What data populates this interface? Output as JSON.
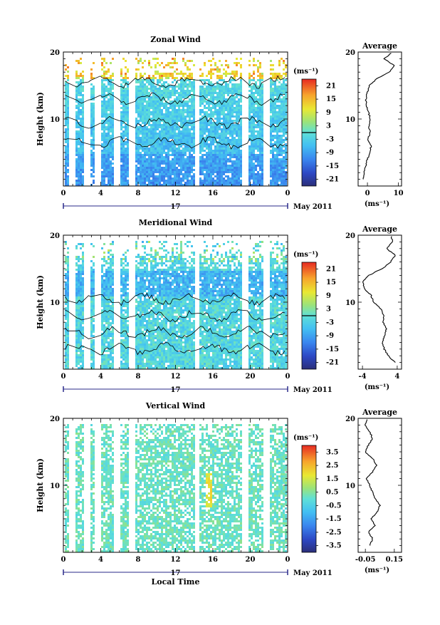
{
  "chart_data": [
    {
      "type": "heatmap",
      "title": "Zonal Wind",
      "ylabel": "Height (km)",
      "xlabel": "",
      "x_ticks": [
        "0",
        "4",
        "8",
        "12",
        "16",
        "20",
        "0"
      ],
      "y_ticks": [
        "20",
        "10"
      ],
      "xlim": [
        0,
        24
      ],
      "ylim": [
        0,
        20
      ],
      "date_label": "17",
      "month_label": "May 2011",
      "colorbar": {
        "unit_label": "(ms⁻¹)",
        "ticks": [
          "21",
          "15",
          "9",
          "3",
          "-3",
          "-9",
          "-15",
          "-21"
        ],
        "range": [
          -24,
          24
        ],
        "contour_level": 0
      },
      "data_gap_hours": [
        0.9,
        2.4,
        3.5,
        5.6,
        7.3,
        14.2,
        19.3,
        21.7
      ],
      "profile": {
        "title": "Average",
        "x_ticks": [
          "0",
          "10"
        ],
        "xlim": [
          -3,
          11
        ],
        "unit_label": "(ms⁻¹)",
        "heights": [
          1,
          2,
          3,
          4,
          5,
          6,
          7,
          8,
          9,
          10,
          11,
          12,
          13,
          14,
          15,
          16,
          17,
          18,
          19,
          20
        ],
        "values": [
          -1.5,
          -1.0,
          -0.5,
          0.0,
          0.8,
          1.2,
          0.2,
          0.8,
          0.5,
          1.0,
          0.3,
          -0.3,
          -0.5,
          0.0,
          0.5,
          3.0,
          7.0,
          8.5,
          5.5,
          8.0
        ]
      }
    },
    {
      "type": "heatmap",
      "title": "Meridional Wind",
      "ylabel": "Height (km)",
      "xlabel": "",
      "x_ticks": [
        "0",
        "4",
        "8",
        "12",
        "16",
        "20",
        "0"
      ],
      "y_ticks": [
        "20",
        "10"
      ],
      "xlim": [
        0,
        24
      ],
      "ylim": [
        0,
        20
      ],
      "date_label": "17",
      "month_label": "May 2011",
      "colorbar": {
        "unit_label": "(ms⁻¹)",
        "ticks": [
          "21",
          "15",
          "9",
          "3",
          "-3",
          "-9",
          "-15",
          "-21"
        ],
        "range": [
          -24,
          24
        ],
        "contour_level": 0
      },
      "data_gap_hours": [
        0.9,
        2.4,
        3.5,
        5.6,
        7.3,
        14.2,
        19.3,
        21.7
      ],
      "profile": {
        "title": "Average",
        "x_ticks": [
          "-4",
          "4"
        ],
        "xlim": [
          -5,
          5
        ],
        "unit_label": "(ms⁻¹)",
        "heights": [
          1,
          2,
          3,
          4,
          5,
          6,
          7,
          8,
          9,
          10,
          11,
          12,
          13,
          14,
          15,
          16,
          17,
          18,
          19,
          20
        ],
        "values": [
          3.5,
          2.0,
          1.0,
          0.5,
          1.2,
          1.5,
          0.8,
          1.0,
          0.2,
          -1.5,
          -2.0,
          -3.5,
          -4.0,
          -2.5,
          0.5,
          2.5,
          3.5,
          1.5,
          3.0,
          2.5
        ]
      }
    },
    {
      "type": "heatmap",
      "title": "Vertical Wind",
      "ylabel": "Height (km)",
      "xlabel": "Local Time",
      "x_ticks": [
        "0",
        "4",
        "8",
        "12",
        "16",
        "20",
        "0"
      ],
      "y_ticks": [
        "20",
        "10"
      ],
      "xlim": [
        0,
        24
      ],
      "ylim": [
        0,
        20
      ],
      "date_label": "17",
      "month_label": "May 2011",
      "colorbar": {
        "unit_label": "(ms⁻¹)",
        "ticks": [
          "3.5",
          "2.5",
          "1.5",
          "0.5",
          "-0.5",
          "-1.5",
          "-2.5",
          "-3.5"
        ],
        "range": [
          -4,
          4
        ],
        "contour_level": null
      },
      "data_gap_hours": [
        0.9,
        2.4,
        3.5,
        5.6,
        7.3,
        14.2,
        19.3,
        21.7
      ],
      "profile": {
        "title": "Average",
        "x_ticks": [
          "-0.05",
          "0.15"
        ],
        "xlim": [
          -0.1,
          0.2
        ],
        "unit_label": "(ms⁻¹)",
        "heights": [
          1,
          2,
          3,
          4,
          5,
          6,
          7,
          8,
          9,
          10,
          11,
          12,
          13,
          14,
          15,
          16,
          17,
          18,
          19,
          20
        ],
        "values": [
          -0.02,
          0.0,
          -0.03,
          0.02,
          -0.01,
          0.03,
          0.05,
          0.02,
          0.0,
          -0.02,
          -0.04,
          0.0,
          0.03,
          0.0,
          -0.05,
          -0.03,
          0.0,
          -0.02,
          -0.05,
          -0.04
        ]
      }
    }
  ]
}
